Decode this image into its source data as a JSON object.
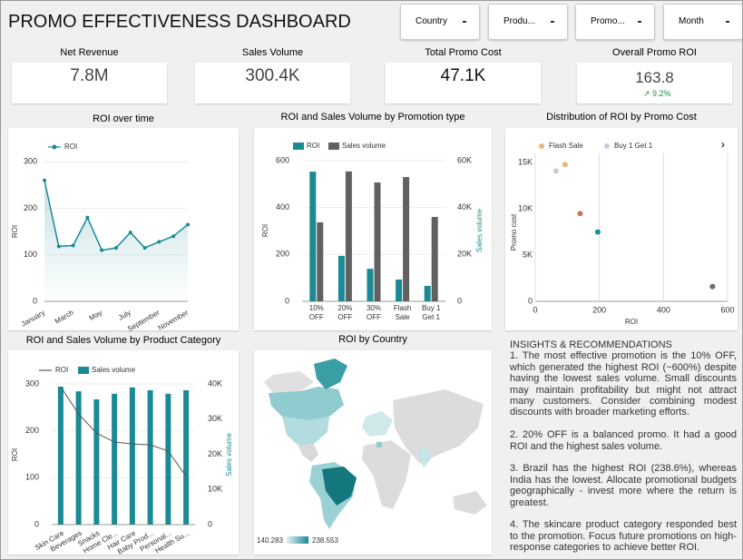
{
  "header": {
    "title": "PROMO EFFECTIVENESS DASHBOARD"
  },
  "filters": [
    "Country",
    "Produ...",
    "Promo...",
    "Month"
  ],
  "kpis": [
    {
      "label": "Net Revenue",
      "value": "7.8M"
    },
    {
      "label": "Sales Volume",
      "value": "300.4K"
    },
    {
      "label": "Total Promo Cost",
      "value": "47.1K"
    },
    {
      "label": "Overall Promo ROI",
      "value": "163.8",
      "delta": "9.2%"
    }
  ],
  "chart_data": [
    {
      "type": "line",
      "title": "ROI over time",
      "categories": [
        "January",
        null,
        "March",
        null,
        "May",
        null,
        "July",
        null,
        "September",
        null,
        "November"
      ],
      "series": [
        {
          "name": "ROI",
          "color": "#1a8a95",
          "values": [
            260,
            118,
            120,
            180,
            110,
            115,
            148,
            115,
            128,
            140,
            165
          ]
        }
      ],
      "ylabel": "ROI",
      "ylim": [
        0,
        320
      ],
      "yticks": [
        0,
        100,
        200,
        300
      ]
    },
    {
      "type": "bar",
      "title": "ROI and Sales Volume by Promotion type",
      "categories": [
        "10% OFF",
        "20% OFF",
        "30% OFF",
        "Flash Sale",
        "Buy 1 Get 1"
      ],
      "series": [
        {
          "name": "ROI",
          "color": "#1a8a95",
          "values": [
            553,
            194,
            139,
            93,
            66
          ]
        },
        {
          "name": "Sales volume",
          "color": "#616161",
          "axis": "y2",
          "values": [
            33700,
            55400,
            50700,
            53000,
            36000
          ]
        }
      ],
      "ylabel": "ROI",
      "y2label": "Sales volume",
      "ylim": [
        0,
        600
      ],
      "yticks": [
        0,
        200,
        400,
        600
      ],
      "y2lim": [
        0,
        60000
      ],
      "y2ticks": [
        0,
        {
          "value": 20000,
          "label": "20K"
        },
        {
          "value": 40000,
          "label": "40K"
        },
        {
          "value": 60000,
          "label": "60K"
        }
      ]
    },
    {
      "type": "scatter",
      "title": "Distribution of ROI by Promo Cost",
      "series": [
        {
          "name": "Flash Sale",
          "color": "#e8b77a",
          "x": [
            93
          ],
          "values": [
            14800
          ]
        },
        {
          "name": "Buy 1 Get 1",
          "color": "#c5cdd8",
          "x": [
            65
          ],
          "values": [
            14100
          ]
        },
        {
          "color": "#c4785c",
          "x": [
            140
          ],
          "values": [
            9500
          ]
        },
        {
          "color": "#1a8a95",
          "x": [
            195
          ],
          "values": [
            7500
          ]
        },
        {
          "color": "#6b6b6b",
          "x": [
            553
          ],
          "values": [
            1600
          ]
        }
      ],
      "xlabel": "ROI",
      "ylabel": "Promo cost",
      "xlim": [
        0,
        600
      ],
      "xticks": [
        0,
        200,
        400,
        600
      ],
      "ylim": [
        0,
        16000
      ],
      "yticks": [
        0,
        {
          "value": 5000,
          "label": "5K"
        },
        {
          "value": 10000,
          "label": "10K"
        },
        {
          "value": 15000,
          "label": "15K"
        }
      ],
      "grid": true
    },
    {
      "type": "combo",
      "title": "ROI and Sales Volume by Product Category",
      "categories": [
        "Skin Care",
        "Beverages",
        "Snacks",
        "Home Cle...",
        "Hair Care",
        "Baby Prod...",
        "Personal...",
        "Health Su..."
      ],
      "series": [
        {
          "name": "ROI",
          "type": "line",
          "color": "#555555",
          "values": [
            294,
            236,
            195,
            176,
            172,
            170,
            157,
            103
          ]
        },
        {
          "name": "Sales volume",
          "type": "bar",
          "color": "#1a8a95",
          "axis": "y2",
          "values": [
            39200,
            37900,
            35600,
            37200,
            39000,
            38200,
            37200,
            38200
          ]
        }
      ],
      "ylabel": "ROI",
      "y2label": "Sales volume",
      "ylim": [
        0,
        300
      ],
      "yticks": [
        0,
        100,
        200,
        300
      ],
      "y2lim": [
        0,
        40000
      ],
      "y2ticks": [
        0,
        {
          "value": 10000,
          "label": "10K"
        },
        {
          "value": 20000,
          "label": "20K"
        },
        {
          "value": 30000,
          "label": "30K"
        },
        {
          "value": 40000,
          "label": "40K"
        }
      ]
    }
  ],
  "map": {
    "title": "ROI by Country",
    "legend": [
      140.283,
      238.553
    ]
  },
  "insights": {
    "title": "INSIGHTS & RECOMMENDATIONS",
    "paragraphs": [
      "1. The most effective promotion is the 10% OFF, which generated the highest ROI (~600%) despite having the lowest sales volume. Small discounts may maintain profitability but might not attract many customers. Consider combining modest discounts with broader marketing efforts.",
      "2. 20% OFF is a balanced promo. It had a good ROI and the highest sales volume.",
      "3. Brazil has the highest ROI (238.6%), whereas India has the lowest. Allocate promotional budgets geographically -  invest more where the return is greatest.",
      "4. The skincare product category responded best to the promotion. Focus future promotions on high-response categories to achieve better ROI."
    ]
  }
}
